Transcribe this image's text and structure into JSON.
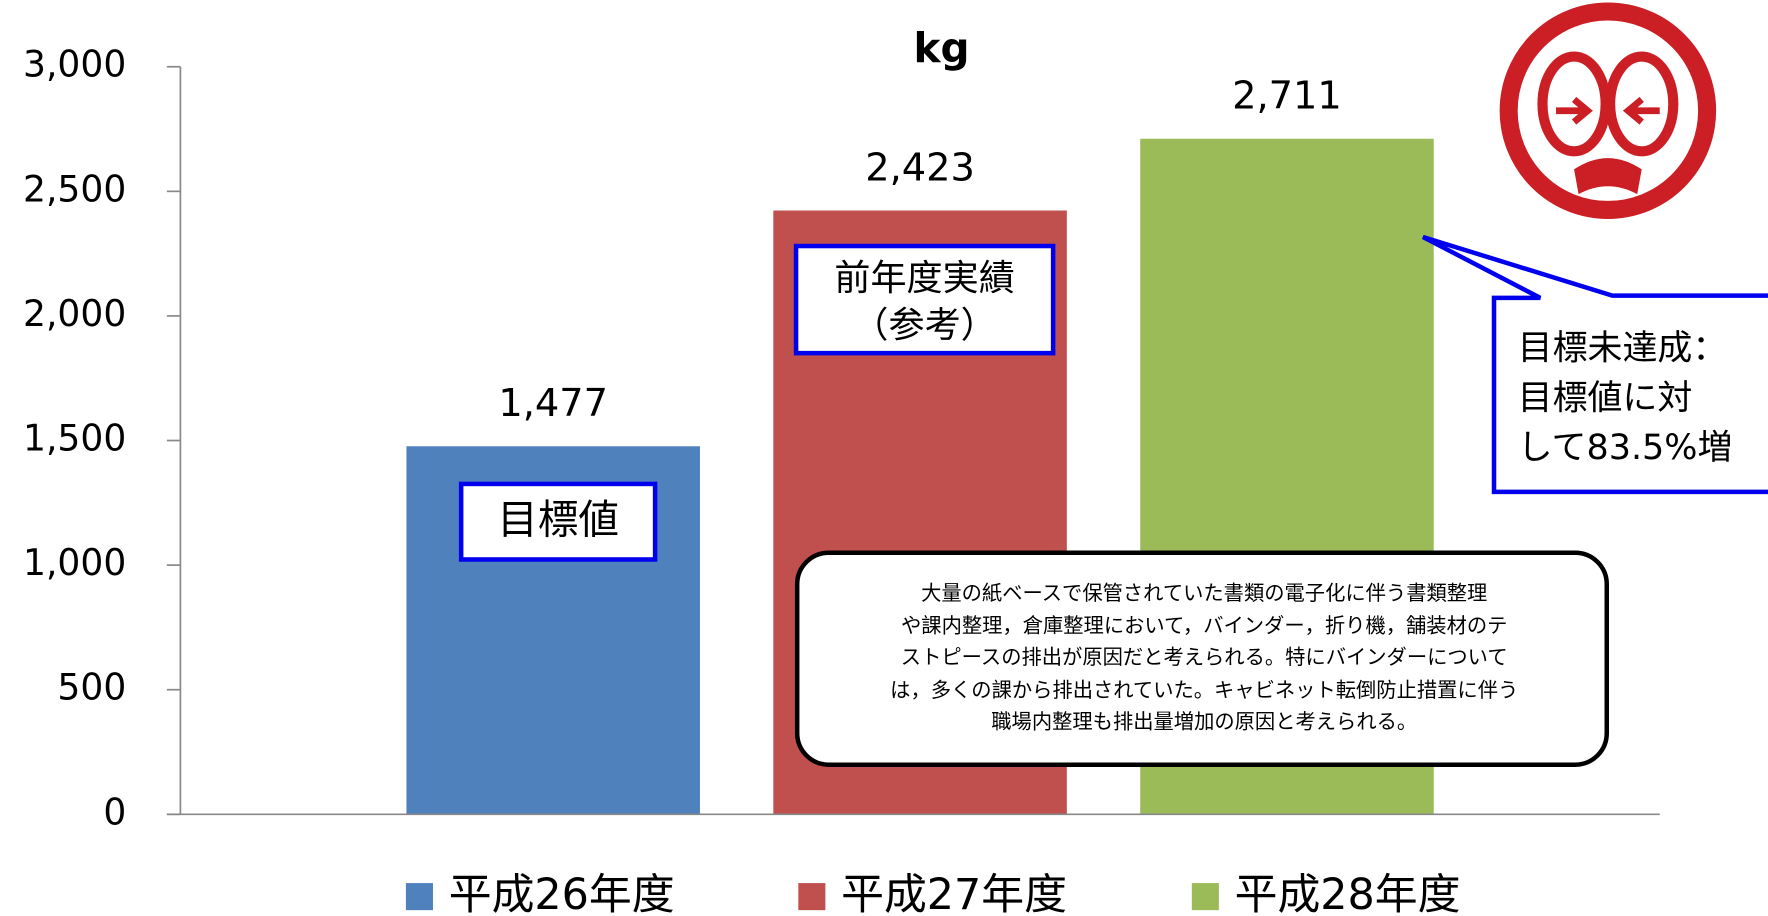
{
  "chart_data": {
    "type": "bar",
    "title": "kg",
    "categories": [
      null
    ],
    "series": [
      {
        "name": "平成26年度",
        "color": "#4f81bd",
        "values": [
          1477
        ],
        "value_labels": [
          "1,477"
        ]
      },
      {
        "name": "平成27年度",
        "color": "#c0504d",
        "values": [
          2423
        ],
        "value_labels": [
          "2,423"
        ]
      },
      {
        "name": "平成28年度",
        "color": "#9bbb59",
        "values": [
          2711
        ],
        "value_labels": [
          "2,711"
        ]
      }
    ],
    "ylim": [
      0,
      3000
    ],
    "yticks": [
      0,
      500,
      {
        "value": 1000,
        "label": "1,000"
      },
      {
        "value": 1500,
        "label": "1,500"
      },
      {
        "value": 2000,
        "label": "2,000"
      },
      {
        "value": 2500,
        "label": "2,500"
      },
      {
        "value": 3000,
        "label": "3,000"
      }
    ],
    "legend": "bottom",
    "annotations": [
      {
        "lines": [
          "目標値"
        ]
      },
      {
        "lines": [
          "前年度実績",
          "（参考）"
        ]
      },
      {
        "lines": [
          "目標未達成：",
          "目標値に対",
          "して83.5%増"
        ]
      },
      {
        "lines": [
          "大量の紙ベースで保管されていた書類の電子化に伴う書類整理",
          "や課内整理，倉庫整理において，バインダー，折り機，舗装材のテ",
          "ストピースの排出が原因だと考えられる。特にバインダーについて",
          "は，多くの課から排出されていた。キャビネット転倒防止措置に伴う",
          "職場内整理も排出量増加の原因と考えられる。"
        ]
      }
    ]
  }
}
